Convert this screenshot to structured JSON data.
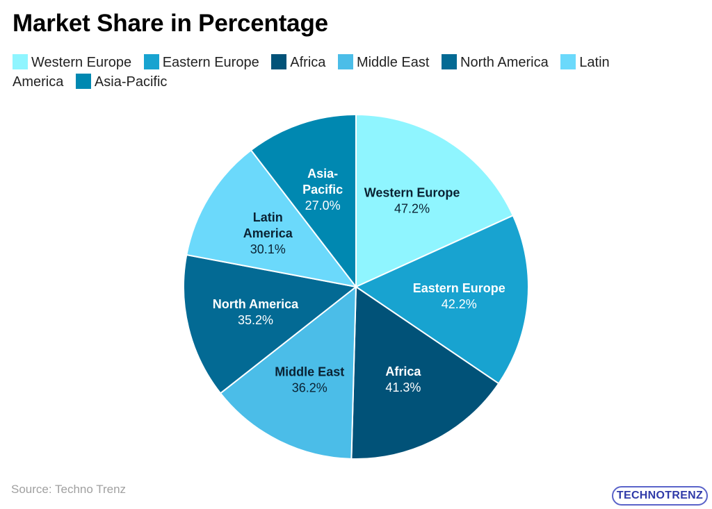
{
  "title": "Market Share in Percentage",
  "source": "Source: Techno Trenz",
  "logo": "TECHNOTRENZ",
  "chart_data": {
    "type": "pie",
    "title": "Market Share in Percentage",
    "legend_position": "top",
    "slices": [
      {
        "label": "Western Europe",
        "value": 47.2,
        "display": "47.2%",
        "color": "#8ff5ff",
        "text_color": "#0a2233"
      },
      {
        "label": "Eastern Europe",
        "value": 42.2,
        "display": "42.2%",
        "color": "#18a3d0",
        "text_color": "#ffffff"
      },
      {
        "label": "Africa",
        "value": 41.3,
        "display": "41.3%",
        "color": "#015278",
        "text_color": "#ffffff"
      },
      {
        "label": "Middle East",
        "value": 36.2,
        "display": "36.2%",
        "color": "#4bbde8",
        "text_color": "#0a2233"
      },
      {
        "label": "North America",
        "value": 35.2,
        "display": "35.2%",
        "color": "#036a94",
        "text_color": "#ffffff"
      },
      {
        "label": "Latin America",
        "value": 30.1,
        "display": "30.1%",
        "color": "#6bd9fb",
        "text_color": "#0a2233"
      },
      {
        "label": "Asia-Pacific",
        "value": 27.0,
        "display": "27.0%",
        "color": "#0088b1",
        "text_color": "#ffffff"
      }
    ]
  }
}
